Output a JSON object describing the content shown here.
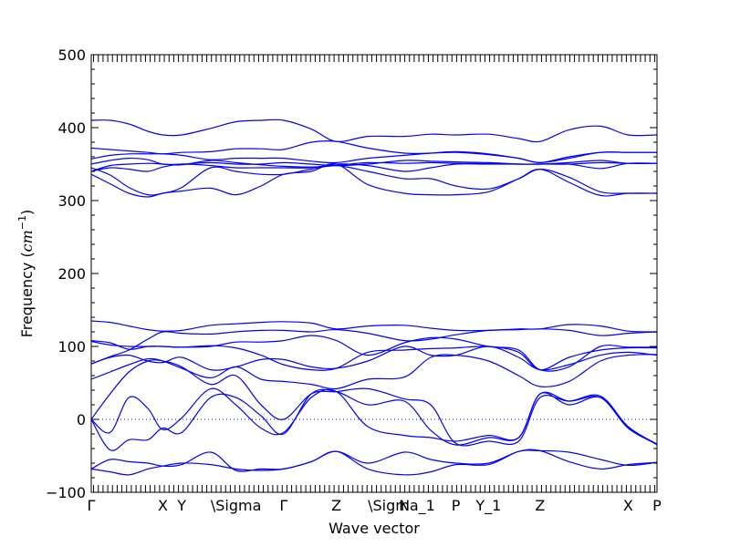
{
  "chart_data": {
    "type": "line",
    "title": "",
    "xlabel": "Wave vector",
    "ylabel_prefix": "Frequency (",
    "ylabel_unit": "cm",
    "ylabel_exponent": "−1",
    "ylabel_suffix": ")",
    "ylim": [
      -100,
      500
    ],
    "yticks": [
      -100,
      0,
      100,
      200,
      300,
      400,
      500
    ],
    "xlim": [
      0,
      4.5
    ],
    "xticks": [
      {
        "label": "Γ",
        "x": 0.0
      },
      {
        "label": "X",
        "x": 0.57
      },
      {
        "label": "Y",
        "x": 0.72
      },
      {
        "label": "\\Sigma",
        "x": 0.95
      },
      {
        "label": "Γ",
        "x": 1.53
      },
      {
        "label": "Z",
        "x": 1.95
      },
      {
        "label": "\\Sigma_1",
        "x": 2.2
      },
      {
        "label": "N",
        "x": 2.49
      },
      {
        "label": "P",
        "x": 2.9
      },
      {
        "label": "Y_1",
        "x": 3.16
      },
      {
        "label": "Z",
        "x": 3.57
      },
      {
        "label": "X",
        "x": 4.27
      },
      {
        "label": "P",
        "x": 4.5
      }
    ],
    "zero_line": true,
    "grid": false,
    "line_color": "#0000ff",
    "x": [
      0.0,
      0.15,
      0.3,
      0.45,
      0.57,
      0.72,
      0.95,
      1.15,
      1.35,
      1.53,
      1.75,
      1.95,
      2.2,
      2.49,
      2.7,
      2.9,
      3.16,
      3.4,
      3.57,
      3.8,
      4.05,
      4.27,
      4.5
    ],
    "series": [
      {
        "values": [
          -68,
          -72,
          -76,
          -68,
          -64,
          -60,
          -62,
          -68,
          -70,
          -68,
          -58,
          -44,
          -60,
          -45,
          -55,
          -60,
          -60,
          -44,
          -43,
          -45,
          -55,
          -63,
          -59
        ]
      },
      {
        "values": [
          -68,
          -55,
          -58,
          -60,
          -64,
          -62,
          -45,
          -70,
          -68,
          -68,
          -58,
          -44,
          -68,
          -76,
          -72,
          -62,
          -62,
          -44,
          -43,
          -58,
          -68,
          -62,
          -59
        ]
      },
      {
        "values": [
          0,
          -42,
          -28,
          -28,
          -12,
          -18,
          30,
          30,
          5,
          -20,
          35,
          38,
          20,
          25,
          -15,
          -35,
          -25,
          -25,
          35,
          20,
          30,
          -10,
          -35
        ]
      },
      {
        "values": [
          0,
          -18,
          30,
          15,
          -14,
          2,
          42,
          20,
          -12,
          -18,
          30,
          38,
          -10,
          -22,
          -25,
          -30,
          -22,
          -25,
          35,
          25,
          30,
          -12,
          -34
        ]
      },
      {
        "values": [
          0,
          35,
          65,
          80,
          80,
          72,
          48,
          60,
          20,
          0,
          35,
          38,
          42,
          28,
          20,
          -33,
          -30,
          -30,
          30,
          25,
          32,
          -10,
          -34
        ]
      },
      {
        "values": [
          55,
          65,
          75,
          83,
          80,
          70,
          57,
          72,
          55,
          52,
          48,
          42,
          55,
          58,
          85,
          88,
          80,
          60,
          45,
          52,
          80,
          88,
          89
        ]
      },
      {
        "values": [
          76,
          85,
          88,
          80,
          78,
          85,
          68,
          72,
          82,
          82,
          72,
          70,
          80,
          100,
          88,
          88,
          100,
          85,
          68,
          75,
          88,
          92,
          88
        ]
      },
      {
        "values": [
          108,
          105,
          96,
          100,
          100,
          99,
          101,
          98,
          88,
          75,
          68,
          70,
          92,
          95,
          97,
          98,
          100,
          92,
          68,
          85,
          95,
          98,
          98
        ]
      },
      {
        "values": [
          107,
          102,
          100,
          100,
          100,
          99,
          100,
          106,
          106,
          108,
          115,
          108,
          88,
          105,
          112,
          110,
          100,
          95,
          68,
          72,
          100,
          99,
          99
        ]
      },
      {
        "values": [
          76,
          86,
          95,
          110,
          120,
          118,
          117,
          120,
          122,
          122,
          120,
          123,
          118,
          108,
          110,
          116,
          122,
          123,
          124,
          122,
          115,
          118,
          120
        ]
      },
      {
        "values": [
          135,
          133,
          128,
          123,
          121,
          122,
          129,
          131,
          133,
          134,
          132,
          124,
          128,
          129,
          125,
          122,
          122,
          124,
          124,
          130,
          128,
          121,
          120
        ]
      },
      {
        "values": [
          410,
          410,
          405,
          395,
          390,
          390,
          399,
          408,
          410,
          410,
          398,
          381,
          388,
          388,
          391,
          390,
          391,
          385,
          381,
          397,
          402,
          390,
          390
        ]
      },
      {
        "values": [
          372,
          370,
          368,
          366,
          364,
          366,
          367,
          371,
          371,
          370,
          380,
          381,
          372,
          365,
          365,
          366,
          363,
          358,
          352,
          360,
          366,
          366,
          366
        ]
      },
      {
        "values": [
          357,
          362,
          364,
          364,
          364,
          362,
          356,
          358,
          358,
          358,
          354,
          352,
          358,
          362,
          365,
          367,
          364,
          358,
          352,
          358,
          366,
          366,
          366
        ]
      },
      {
        "values": [
          350,
          355,
          358,
          356,
          350,
          350,
          352,
          350,
          350,
          352,
          350,
          348,
          350,
          355,
          354,
          353,
          352,
          350,
          350,
          350,
          352,
          351,
          351
        ]
      },
      {
        "values": [
          340,
          348,
          350,
          351,
          350,
          349,
          355,
          352,
          349,
          347,
          346,
          348,
          352,
          351,
          352,
          351,
          351,
          350,
          350,
          350,
          344,
          351,
          351
        ]
      },
      {
        "values": [
          340,
          345,
          343,
          340,
          346,
          350,
          348,
          345,
          345,
          345,
          345,
          350,
          348,
          340,
          345,
          350,
          350,
          350,
          350,
          352,
          355,
          351,
          351
        ]
      },
      {
        "values": [
          345,
          335,
          318,
          308,
          310,
          318,
          345,
          340,
          336,
          336,
          343,
          348,
          340,
          330,
          330,
          320,
          316,
          330,
          343,
          332,
          312,
          310,
          310
        ]
      },
      {
        "values": [
          336,
          323,
          310,
          305,
          310,
          313,
          317,
          308,
          320,
          336,
          340,
          350,
          322,
          310,
          308,
          308,
          312,
          330,
          343,
          325,
          307,
          310,
          310
        ]
      }
    ]
  }
}
